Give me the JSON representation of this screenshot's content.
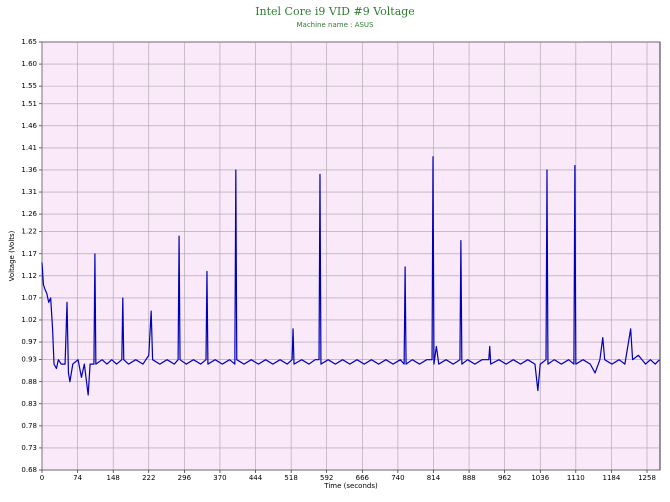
{
  "chart_data": {
    "type": "line",
    "title": "Intel Core i9 VID #9 Voltage",
    "subtitle": "Machine name : ASUS",
    "x_label": "Time (seconds)",
    "y_label": "Voltage (Volts)",
    "xlim": [
      0,
      1285
    ],
    "ylim": [
      0.68,
      1.65
    ],
    "xticks": [
      0,
      74,
      148,
      222,
      296,
      370,
      444,
      518,
      592,
      666,
      740,
      814,
      888,
      962,
      1036,
      1110,
      1184,
      1258
    ],
    "yticks": [
      0.68,
      0.73,
      0.78,
      0.83,
      0.88,
      0.93,
      0.97,
      1.02,
      1.07,
      1.12,
      1.17,
      1.22,
      1.26,
      1.31,
      1.36,
      1.41,
      1.46,
      1.51,
      1.55,
      {
        "value": 1.6,
        "label": "1.60"
      },
      1.65
    ],
    "grid": true,
    "x": [
      0,
      3,
      6,
      10,
      14,
      18,
      22,
      25,
      30,
      34,
      40,
      48,
      52,
      55,
      58,
      64,
      75,
      82,
      88,
      96,
      100,
      108,
      110,
      112,
      125,
      135,
      145,
      155,
      166,
      168,
      170,
      180,
      195,
      210,
      222,
      227,
      230,
      245,
      260,
      275,
      283,
      285,
      287,
      300,
      315,
      330,
      341,
      343,
      345,
      360,
      375,
      390,
      401,
      403,
      405,
      420,
      435,
      450,
      465,
      480,
      495,
      510,
      520,
      522,
      524,
      540,
      555,
      568,
      576,
      578,
      580,
      595,
      610,
      625,
      640,
      655,
      670,
      685,
      700,
      715,
      730,
      745,
      753,
      755,
      757,
      770,
      785,
      800,
      811,
      813,
      815,
      820,
      825,
      840,
      855,
      869,
      871,
      873,
      885,
      900,
      915,
      929,
      931,
      933,
      950,
      965,
      980,
      995,
      1010,
      1025,
      1031,
      1036,
      1048,
      1050,
      1052,
      1065,
      1080,
      1095,
      1106,
      1108,
      1110,
      1125,
      1140,
      1150,
      1160,
      1166,
      1170,
      1185,
      1200,
      1212,
      1224,
      1228,
      1240,
      1255,
      1265,
      1275,
      1284
    ],
    "series": [
      {
        "name": "VID #9",
        "color": "#0000b4",
        "values": [
          1.15,
          1.1,
          1.09,
          1.08,
          1.06,
          1.07,
          1.0,
          0.92,
          0.91,
          0.93,
          0.92,
          0.92,
          1.06,
          0.9,
          0.88,
          0.92,
          0.93,
          0.89,
          0.92,
          0.85,
          0.92,
          0.92,
          1.17,
          0.92,
          0.93,
          0.92,
          0.93,
          0.92,
          0.93,
          1.07,
          0.93,
          0.92,
          0.93,
          0.92,
          0.94,
          1.04,
          0.93,
          0.92,
          0.93,
          0.92,
          0.93,
          1.21,
          0.93,
          0.92,
          0.93,
          0.92,
          0.93,
          1.13,
          0.92,
          0.93,
          0.92,
          0.93,
          0.92,
          1.36,
          0.93,
          0.92,
          0.93,
          0.92,
          0.93,
          0.92,
          0.93,
          0.92,
          0.93,
          1.0,
          0.92,
          0.93,
          0.92,
          0.93,
          0.93,
          1.35,
          0.92,
          0.93,
          0.92,
          0.93,
          0.92,
          0.93,
          0.92,
          0.93,
          0.92,
          0.93,
          0.92,
          0.93,
          0.92,
          1.14,
          0.92,
          0.93,
          0.92,
          0.93,
          0.93,
          1.39,
          0.92,
          0.96,
          0.92,
          0.93,
          0.92,
          0.93,
          1.2,
          0.92,
          0.93,
          0.92,
          0.93,
          0.93,
          0.96,
          0.92,
          0.93,
          0.92,
          0.93,
          0.92,
          0.93,
          0.92,
          0.86,
          0.92,
          0.93,
          1.36,
          0.92,
          0.93,
          0.92,
          0.93,
          0.92,
          1.37,
          0.92,
          0.93,
          0.92,
          0.9,
          0.93,
          0.98,
          0.93,
          0.92,
          0.93,
          0.92,
          1.0,
          0.93,
          0.94,
          0.92,
          0.93,
          0.92,
          0.93
        ]
      }
    ]
  }
}
